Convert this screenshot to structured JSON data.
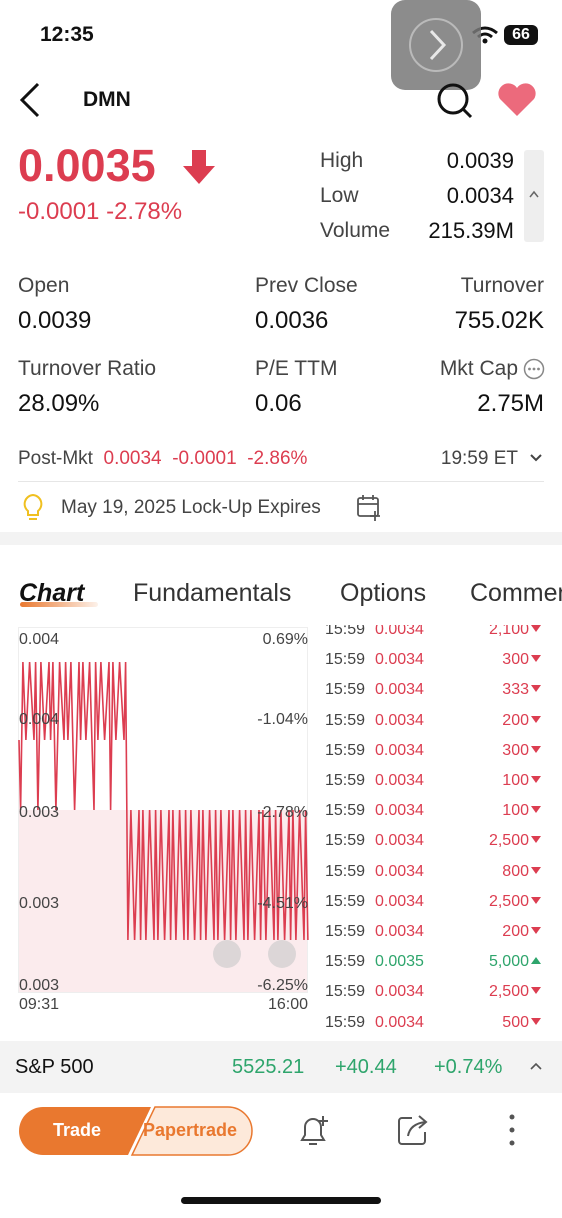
{
  "status": {
    "time": "12:35",
    "battery": "66"
  },
  "header": {
    "title": "DMN"
  },
  "quote": {
    "price": "0.0035",
    "change": "-0.0001",
    "change_pct": "-2.78%",
    "side_stats": [
      {
        "label": "High",
        "value": "0.0039"
      },
      {
        "label": "Low",
        "value": "0.0034"
      },
      {
        "label": "Volume",
        "value": "215.39M"
      }
    ]
  },
  "stats": [
    [
      {
        "label": "Open",
        "value": "0.0039"
      },
      {
        "label": "Prev Close",
        "value": "0.0036"
      },
      {
        "label": "Turnover",
        "value": "755.02K"
      }
    ],
    [
      {
        "label": "Turnover Ratio",
        "value": "28.09%"
      },
      {
        "label": "P/E TTM",
        "value": "0.06"
      },
      {
        "label": "Mkt Cap",
        "value": "2.75M"
      }
    ]
  ],
  "post_market": {
    "label": "Post-Mkt",
    "price": "0.0034",
    "change": "-0.0001",
    "change_pct": "-2.86%",
    "time": "19:59 ET"
  },
  "event": {
    "text": "May 19, 2025 Lock-Up Expires"
  },
  "tabs": [
    "Chart",
    "Fundamentals",
    "Options",
    "Comments"
  ],
  "chart": {
    "left_labels": [
      "0.004",
      "0.004",
      "0.003",
      "0.003",
      "0.003"
    ],
    "right_labels": [
      "0.69%",
      "-1.04%",
      "-2.78%",
      "-4.51%",
      "-6.25%"
    ],
    "x_labels": [
      "09:31",
      "16:00"
    ]
  },
  "trades": [
    {
      "time": "15:59",
      "price": "0.0034",
      "volume": "2,100",
      "side": "down"
    },
    {
      "time": "15:59",
      "price": "0.0034",
      "volume": "300",
      "side": "down"
    },
    {
      "time": "15:59",
      "price": "0.0034",
      "volume": "333",
      "side": "down"
    },
    {
      "time": "15:59",
      "price": "0.0034",
      "volume": "200",
      "side": "down"
    },
    {
      "time": "15:59",
      "price": "0.0034",
      "volume": "300",
      "side": "down"
    },
    {
      "time": "15:59",
      "price": "0.0034",
      "volume": "100",
      "side": "down"
    },
    {
      "time": "15:59",
      "price": "0.0034",
      "volume": "100",
      "side": "down"
    },
    {
      "time": "15:59",
      "price": "0.0034",
      "volume": "2,500",
      "side": "down"
    },
    {
      "time": "15:59",
      "price": "0.0034",
      "volume": "800",
      "side": "down"
    },
    {
      "time": "15:59",
      "price": "0.0034",
      "volume": "2,500",
      "side": "down"
    },
    {
      "time": "15:59",
      "price": "0.0034",
      "volume": "200",
      "side": "down"
    },
    {
      "time": "15:59",
      "price": "0.0035",
      "volume": "5,000",
      "side": "up"
    },
    {
      "time": "15:59",
      "price": "0.0034",
      "volume": "2,500",
      "side": "down"
    },
    {
      "time": "15:59",
      "price": "0.0034",
      "volume": "500",
      "side": "down"
    }
  ],
  "index_bar": {
    "name": "S&P 500",
    "value": "5525.21",
    "change": "+40.44",
    "change_pct": "+0.74%"
  },
  "bottom_bar": {
    "trade": "Trade",
    "papertrade": "Papertrade"
  }
}
